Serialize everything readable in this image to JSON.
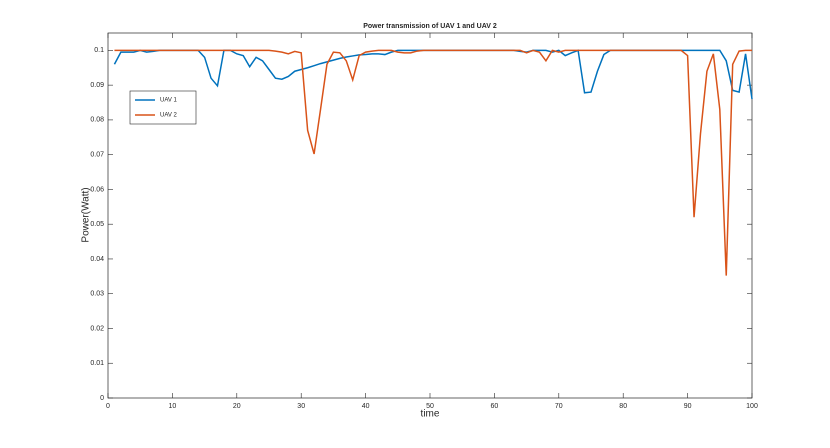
{
  "chart_data": {
    "type": "line",
    "title": "Power transmission of UAV 1 and UAV 2",
    "xlabel": "time",
    "ylabel": "Power(Watt)",
    "x": [
      1,
      2,
      3,
      4,
      5,
      6,
      7,
      8,
      9,
      10,
      11,
      12,
      13,
      14,
      15,
      16,
      17,
      18,
      19,
      20,
      21,
      22,
      23,
      24,
      25,
      26,
      27,
      28,
      29,
      30,
      31,
      32,
      33,
      34,
      35,
      36,
      37,
      38,
      39,
      40,
      41,
      42,
      43,
      44,
      45,
      46,
      47,
      48,
      49,
      50,
      51,
      52,
      53,
      54,
      55,
      56,
      57,
      58,
      59,
      60,
      61,
      62,
      63,
      64,
      65,
      66,
      67,
      68,
      69,
      70,
      71,
      72,
      73,
      74,
      75,
      76,
      77,
      78,
      79,
      80,
      81,
      82,
      83,
      84,
      85,
      86,
      87,
      88,
      89,
      90,
      91,
      92,
      93,
      94,
      95,
      96,
      97,
      98,
      99,
      100
    ],
    "series": [
      {
        "name": "UAV 1",
        "color": "#0072bd",
        "values": [
          0.096,
          0.0995,
          0.0995,
          0.0995,
          0.1,
          0.0995,
          0.0997,
          0.1,
          0.1,
          0.1,
          0.1,
          0.1,
          0.1,
          0.1,
          0.098,
          0.092,
          0.0898,
          0.1,
          0.1,
          0.099,
          0.0985,
          0.0953,
          0.098,
          0.097,
          0.0945,
          0.092,
          0.0917,
          0.0925,
          0.094,
          0.0945,
          0.095,
          0.0956,
          0.0962,
          0.0967,
          0.0972,
          0.0977,
          0.0981,
          0.0984,
          0.0987,
          0.0988,
          0.099,
          0.099,
          0.0988,
          0.0995,
          0.1,
          0.1,
          0.1,
          0.1,
          0.1,
          0.1,
          0.1,
          0.1,
          0.1,
          0.1,
          0.1,
          0.1,
          0.1,
          0.1,
          0.1,
          0.1,
          0.1,
          0.1,
          0.1,
          0.0997,
          0.0995,
          0.1,
          0.1,
          0.1,
          0.0995,
          0.1,
          0.0985,
          0.0993,
          0.1,
          0.0878,
          0.088,
          0.094,
          0.0988,
          0.1,
          0.1,
          0.1,
          0.1,
          0.1,
          0.1,
          0.1,
          0.1,
          0.1,
          0.1,
          0.1,
          0.1,
          0.1,
          0.1,
          0.1,
          0.1,
          0.1,
          0.1,
          0.097,
          0.0885,
          0.088,
          0.099,
          0.086
        ]
      },
      {
        "name": "UAV 2",
        "color": "#d95319",
        "values": [
          0.1,
          0.1,
          0.1,
          0.1,
          0.1,
          0.1,
          0.1,
          0.1,
          0.1,
          0.1,
          0.1,
          0.1,
          0.1,
          0.1,
          0.1,
          0.1,
          0.1,
          0.1,
          0.1,
          0.1,
          0.1,
          0.1,
          0.1,
          0.1,
          0.1,
          0.0998,
          0.0995,
          0.099,
          0.0997,
          0.0993,
          0.077,
          0.0702,
          0.083,
          0.096,
          0.0995,
          0.0993,
          0.097,
          0.0915,
          0.0985,
          0.0995,
          0.0998,
          0.1,
          0.1,
          0.1,
          0.0995,
          0.0993,
          0.0993,
          0.0998,
          0.1,
          0.1,
          0.1,
          0.1,
          0.1,
          0.1,
          0.1,
          0.1,
          0.1,
          0.1,
          0.1,
          0.1,
          0.1,
          0.1,
          0.1,
          0.1,
          0.0993,
          0.1,
          0.0995,
          0.097,
          0.1,
          0.0995,
          0.1,
          0.1,
          0.1,
          0.1,
          0.1,
          0.1,
          0.1,
          0.1,
          0.1,
          0.1,
          0.1,
          0.1,
          0.1,
          0.1,
          0.1,
          0.1,
          0.1,
          0.1,
          0.1,
          0.0985,
          0.052,
          0.076,
          0.094,
          0.099,
          0.083,
          0.0352,
          0.096,
          0.0998,
          0.1,
          0.1
        ]
      }
    ],
    "xlim": [
      0,
      100
    ],
    "xticks": [
      0,
      10,
      20,
      30,
      40,
      50,
      60,
      70,
      80,
      90,
      100
    ],
    "ylim": [
      0,
      0.105
    ],
    "yticks": [
      0,
      0.01,
      0.02,
      0.03,
      0.04,
      0.05,
      0.06,
      0.07,
      0.08,
      0.09,
      0.1
    ],
    "legend": "northwest"
  }
}
